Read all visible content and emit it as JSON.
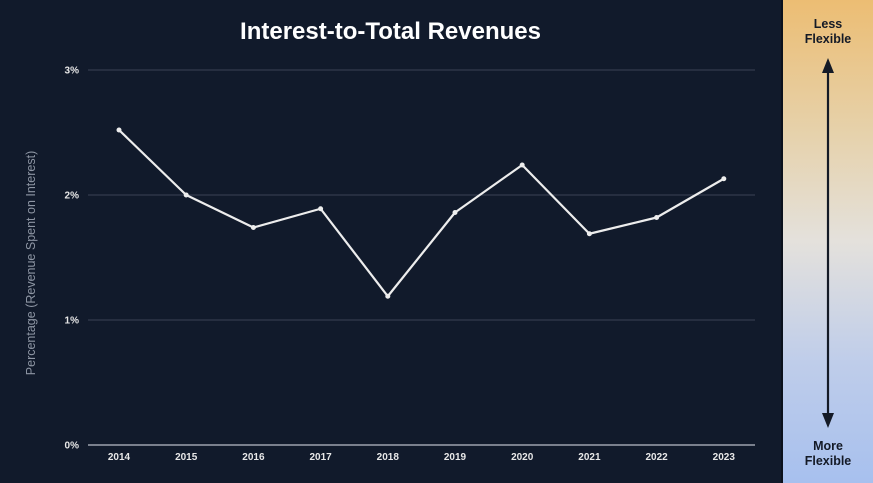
{
  "chart_data": {
    "type": "line",
    "title": "Interest-to-Total Revenues",
    "xlabel": "",
    "ylabel": "Percentage (Revenue Spent on Interest)",
    "categories": [
      "2014",
      "2015",
      "2016",
      "2017",
      "2018",
      "2019",
      "2020",
      "2021",
      "2022",
      "2023"
    ],
    "series": [
      {
        "name": "Interest-to-Total Revenues",
        "values": [
          2.52,
          2.0,
          1.74,
          1.89,
          1.19,
          1.86,
          2.24,
          1.69,
          1.82,
          2.13
        ]
      }
    ],
    "ylim": [
      0,
      3
    ],
    "yticks": [
      0,
      1,
      2,
      3
    ],
    "ytick_labels": [
      "0%",
      "1%",
      "2%",
      "3%"
    ],
    "grid": true,
    "line_color": "#ededed",
    "background_color": "#111a2b"
  },
  "flexibility_scale": {
    "top_label_line1": "Less",
    "top_label_line2": "Flexible",
    "bottom_label_line1": "More",
    "bottom_label_line2": "Flexible"
  }
}
